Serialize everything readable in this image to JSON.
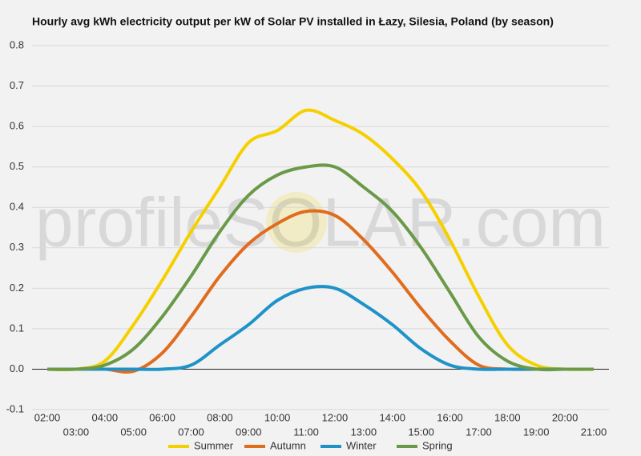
{
  "chart_data": {
    "type": "line",
    "title": "Hourly avg kWh electricity output per kW of Solar PV installed in Łazy, Silesia, Poland (by season)",
    "watermark": "profileSOLAR.com",
    "categories": [
      "02:00",
      "03:00",
      "04:00",
      "05:00",
      "06:00",
      "07:00",
      "08:00",
      "09:00",
      "10:00",
      "11:00",
      "12:00",
      "13:00",
      "14:00",
      "15:00",
      "16:00",
      "17:00",
      "18:00",
      "19:00",
      "20:00",
      "21:00"
    ],
    "series": [
      {
        "name": "Summer",
        "color": "#f5d000",
        "values": [
          0,
          0,
          0.02,
          0.11,
          0.22,
          0.34,
          0.45,
          0.56,
          0.59,
          0.64,
          0.615,
          0.58,
          0.52,
          0.44,
          0.32,
          0.18,
          0.06,
          0.01,
          0,
          0
        ]
      },
      {
        "name": "Autumn",
        "color": "#e06c1e",
        "values": [
          0,
          0,
          0,
          -0.005,
          0.04,
          0.13,
          0.23,
          0.31,
          0.36,
          0.39,
          0.38,
          0.32,
          0.24,
          0.15,
          0.07,
          0.01,
          0,
          0,
          0,
          0
        ]
      },
      {
        "name": "Winter",
        "color": "#1f93c8",
        "values": [
          0,
          0,
          0,
          0,
          0,
          0.01,
          0.06,
          0.11,
          0.17,
          0.2,
          0.2,
          0.16,
          0.11,
          0.05,
          0.01,
          0,
          0,
          0,
          0,
          0
        ]
      },
      {
        "name": "Spring",
        "color": "#6a9a48",
        "values": [
          0,
          0,
          0.01,
          0.05,
          0.13,
          0.23,
          0.34,
          0.43,
          0.48,
          0.5,
          0.5,
          0.45,
          0.39,
          0.3,
          0.19,
          0.08,
          0.02,
          0,
          0,
          0
        ]
      }
    ],
    "ylim": [
      -0.1,
      0.8
    ],
    "yticks": [
      -0.1,
      {
        "value": 0,
        "label": "0.0"
      },
      0.1,
      0.2,
      0.3,
      0.4,
      0.5,
      0.6,
      0.7,
      0.8
    ],
    "grid": true
  }
}
